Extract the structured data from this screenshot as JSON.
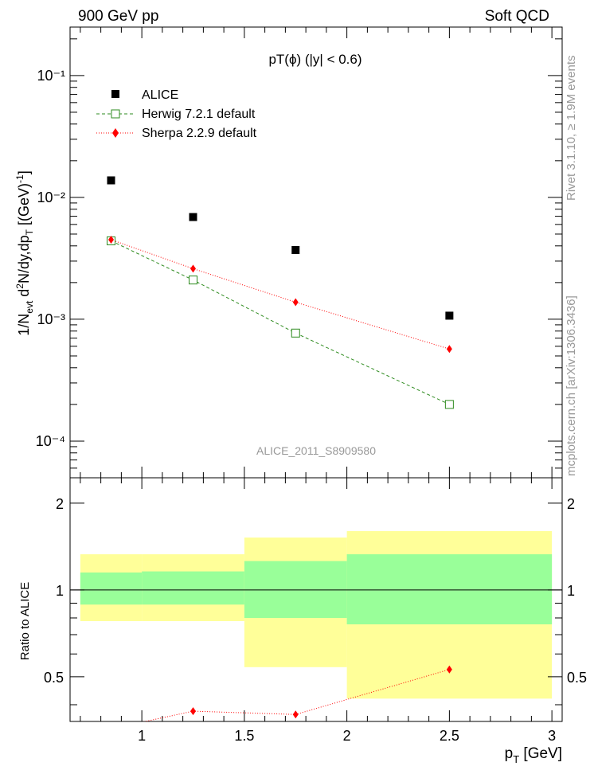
{
  "header": {
    "left": "900 GeV pp",
    "right": "Soft QCD",
    "title": "pT(ϕ) (|y| < 0.6)",
    "side_rivet": "Rivet 3.1.10, ≥ 1.9M events",
    "side_mcplots": "mcplots.cern.ch [arXiv:1306.3436]",
    "watermark": "ALICE_2011_S8909580"
  },
  "legend": {
    "alice": "ALICE",
    "herwig": "Herwig 7.2.1 default",
    "sherpa": "Sherpa 2.2.9 default"
  },
  "axes": {
    "ylabel_main": "1/N_evt d²N/dy,dp_T [(GeV)⁻¹]",
    "ylabel_ratio": "Ratio to ALICE",
    "xlabel": "p_T [GeV]",
    "y_main_ticks": [
      "10⁻¹",
      "10⁻²",
      "10⁻³",
      "10⁻⁴"
    ],
    "x_ticks": [
      "1",
      "1.5",
      "2",
      "2.5",
      "3"
    ],
    "y_ratio_ticks": [
      "0.5",
      "1",
      "2"
    ]
  },
  "colors": {
    "alice": "#000000",
    "herwig": "#2e8b1f",
    "sherpa": "#ff0000",
    "band_inner": "#99ff99",
    "band_outer": "#ffff99"
  },
  "chart_data": [
    {
      "type": "scatter",
      "panel": "main",
      "yscale": "log",
      "xlim": [
        0.65,
        3.05
      ],
      "ylim": [
        5e-05,
        0.25
      ],
      "series": [
        {
          "name": "ALICE",
          "x": [
            0.85,
            1.25,
            1.75,
            2.5
          ],
          "y": [
            0.0138,
            0.0069,
            0.0037,
            0.00107
          ]
        },
        {
          "name": "Herwig 7.2.1 default",
          "x": [
            0.85,
            1.25,
            1.75,
            2.5
          ],
          "y": [
            0.0044,
            0.0021,
            0.00077,
            0.0002
          ]
        },
        {
          "name": "Sherpa 2.2.9 default",
          "x": [
            0.85,
            1.25,
            1.75,
            2.5
          ],
          "y": [
            0.0045,
            0.0026,
            0.00138,
            0.00057
          ]
        }
      ]
    },
    {
      "type": "area",
      "panel": "ratio",
      "yscale": "log",
      "xlim": [
        0.65,
        3.05
      ],
      "ylim": [
        0.35,
        2.45
      ],
      "bins": [
        {
          "xlow": 0.7,
          "xhigh": 1.0,
          "inner_low": 0.89,
          "inner_high": 1.15,
          "outer_low": 0.78,
          "outer_high": 1.33
        },
        {
          "xlow": 1.0,
          "xhigh": 1.5,
          "inner_low": 0.89,
          "inner_high": 1.16,
          "outer_low": 0.78,
          "outer_high": 1.33
        },
        {
          "xlow": 1.5,
          "xhigh": 2.0,
          "inner_low": 0.8,
          "inner_high": 1.26,
          "outer_low": 0.54,
          "outer_high": 1.52
        },
        {
          "xlow": 2.0,
          "xhigh": 3.0,
          "inner_low": 0.76,
          "inner_high": 1.33,
          "outer_low": 0.42,
          "outer_high": 1.6
        }
      ],
      "series": [
        {
          "name": "Sherpa 2.2.9 default",
          "x": [
            0.85,
            1.25,
            1.75,
            2.5
          ],
          "y": [
            0.33,
            0.38,
            0.37,
            0.53
          ]
        }
      ],
      "reference_line": 1
    }
  ]
}
